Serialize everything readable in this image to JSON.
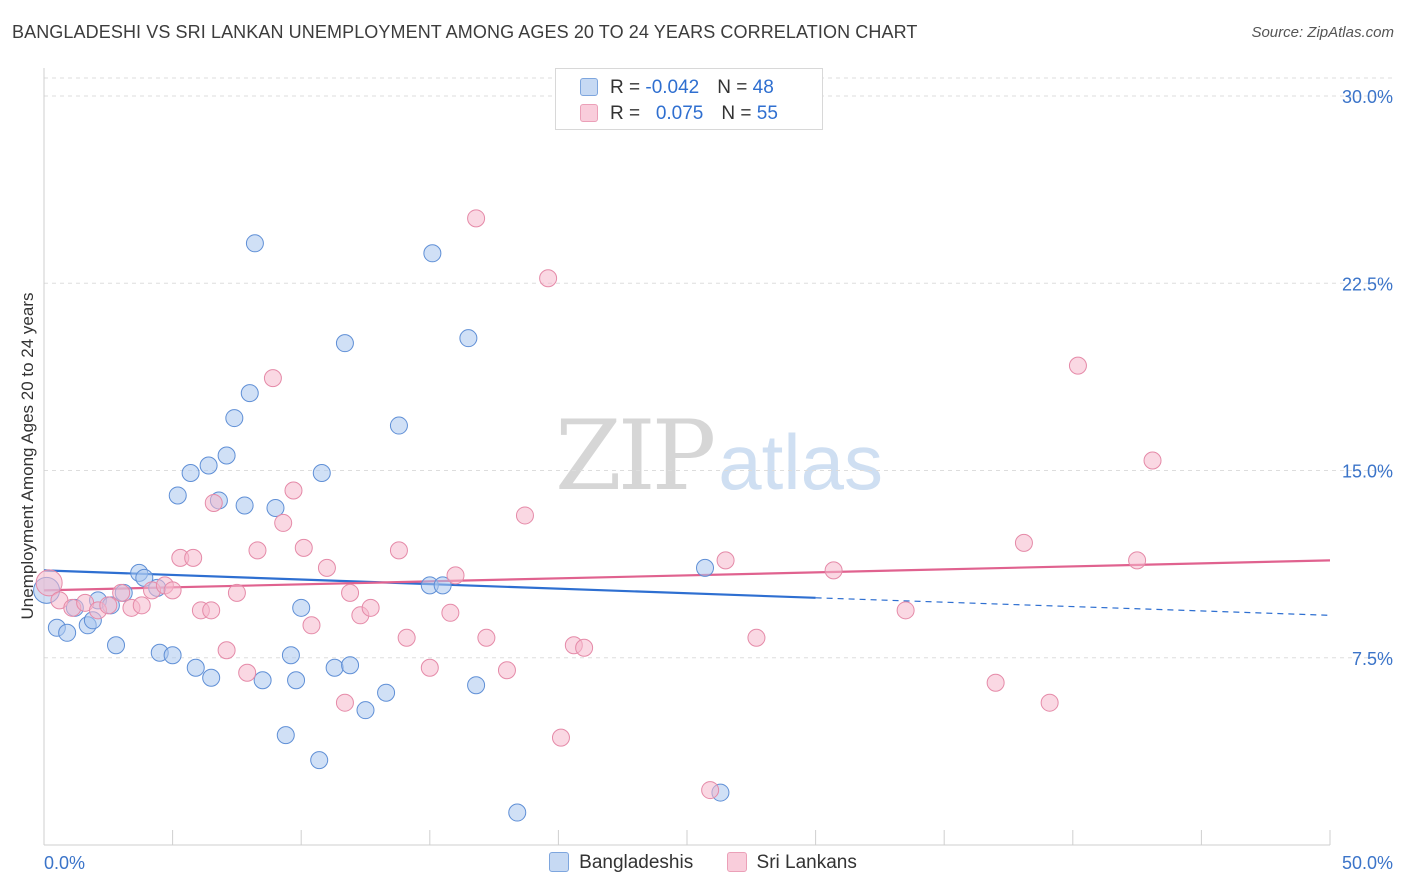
{
  "title": "BANGLADESHI VS SRI LANKAN UNEMPLOYMENT AMONG AGES 20 TO 24 YEARS CORRELATION CHART",
  "source": "Source: ZipAtlas.com",
  "watermark": {
    "zip": "ZIP",
    "atlas": "atlas"
  },
  "legend": {
    "rows": [
      {
        "r_label": "R = ",
        "r_value": "-0.042",
        "n_label": "N = ",
        "n_value": "48"
      },
      {
        "r_label": "R = ",
        "r_value": "0.075",
        "n_label": "N = ",
        "n_value": "55"
      }
    ]
  },
  "colors": {
    "blue_fill": "#a9c6ee",
    "blue_stroke": "#5f8fd6",
    "blue_line": "#2e6fd1",
    "pink_fill": "#f6b8cc",
    "pink_stroke": "#e58aa8",
    "pink_line": "#e0628f",
    "tick_label": "#3b74c9",
    "grid": "#dddddd"
  },
  "chart_data": {
    "type": "scatter",
    "title": "BANGLADESHI VS SRI LANKAN UNEMPLOYMENT AMONG AGES 20 TO 24 YEARS CORRELATION CHART",
    "xlabel": "",
    "ylabel": "Unemployment Among Ages 20 to 24 years",
    "xlim": [
      0,
      50
    ],
    "ylim": [
      0,
      31
    ],
    "x_tick_labels": [
      {
        "value": 0,
        "label": "0.0%"
      },
      {
        "value": 50,
        "label": "50.0%"
      }
    ],
    "y_tick_labels": [
      {
        "value": 7.5,
        "label": "7.5%"
      },
      {
        "value": 15,
        "label": "15.0%"
      },
      {
        "value": 22.5,
        "label": "22.5%"
      },
      {
        "value": 30,
        "label": "30.0%"
      }
    ],
    "grid": true,
    "legend_position": "bottom-center",
    "series": [
      {
        "name": "Bangladeshis",
        "r": -0.042,
        "n": 48,
        "trend": {
          "solid": [
            [
              0,
              11.0
            ],
            [
              30,
              9.9
            ]
          ],
          "dashed": [
            [
              30,
              9.9
            ],
            [
              50,
              9.2
            ]
          ]
        },
        "points": [
          [
            0.1,
            10.2
          ],
          [
            0.5,
            8.7
          ],
          [
            0.9,
            8.5
          ],
          [
            1.2,
            9.5
          ],
          [
            1.7,
            8.8
          ],
          [
            1.9,
            9.0
          ],
          [
            2.1,
            9.8
          ],
          [
            2.6,
            9.6
          ],
          [
            2.8,
            8.0
          ],
          [
            3.1,
            10.1
          ],
          [
            3.7,
            10.9
          ],
          [
            3.9,
            10.7
          ],
          [
            4.4,
            10.3
          ],
          [
            4.5,
            7.7
          ],
          [
            5.0,
            7.6
          ],
          [
            5.2,
            14.0
          ],
          [
            5.7,
            14.9
          ],
          [
            5.9,
            7.1
          ],
          [
            6.4,
            15.2
          ],
          [
            6.5,
            6.7
          ],
          [
            6.8,
            13.8
          ],
          [
            7.1,
            15.6
          ],
          [
            7.4,
            17.1
          ],
          [
            7.8,
            13.6
          ],
          [
            8.0,
            18.1
          ],
          [
            8.2,
            24.1
          ],
          [
            8.5,
            6.6
          ],
          [
            9.0,
            13.5
          ],
          [
            9.4,
            4.4
          ],
          [
            9.6,
            7.6
          ],
          [
            9.8,
            6.6
          ],
          [
            10.0,
            9.5
          ],
          [
            10.8,
            14.9
          ],
          [
            10.7,
            3.4
          ],
          [
            11.3,
            7.1
          ],
          [
            11.7,
            20.1
          ],
          [
            11.9,
            7.2
          ],
          [
            12.5,
            5.4
          ],
          [
            13.3,
            6.1
          ],
          [
            13.8,
            16.8
          ],
          [
            15.0,
            10.4
          ],
          [
            15.1,
            23.7
          ],
          [
            15.5,
            10.4
          ],
          [
            16.5,
            20.3
          ],
          [
            16.8,
            6.4
          ],
          [
            18.4,
            1.3
          ],
          [
            25.7,
            11.1
          ],
          [
            26.3,
            2.1
          ]
        ]
      },
      {
        "name": "Sri Lankans",
        "r": 0.075,
        "n": 55,
        "trend": {
          "solid": [
            [
              0,
              10.2
            ],
            [
              50,
              11.4
            ]
          ]
        },
        "points": [
          [
            0.2,
            10.5
          ],
          [
            0.6,
            9.8
          ],
          [
            1.1,
            9.5
          ],
          [
            1.6,
            9.7
          ],
          [
            2.1,
            9.4
          ],
          [
            2.5,
            9.6
          ],
          [
            3.0,
            10.1
          ],
          [
            3.4,
            9.5
          ],
          [
            3.8,
            9.6
          ],
          [
            4.2,
            10.2
          ],
          [
            4.7,
            10.4
          ],
          [
            5.0,
            10.2
          ],
          [
            5.3,
            11.5
          ],
          [
            5.8,
            11.5
          ],
          [
            6.1,
            9.4
          ],
          [
            6.5,
            9.4
          ],
          [
            6.6,
            13.7
          ],
          [
            7.1,
            7.8
          ],
          [
            7.5,
            10.1
          ],
          [
            7.9,
            6.9
          ],
          [
            8.3,
            11.8
          ],
          [
            8.9,
            18.7
          ],
          [
            9.3,
            12.9
          ],
          [
            9.7,
            14.2
          ],
          [
            10.1,
            11.9
          ],
          [
            10.4,
            8.8
          ],
          [
            11.0,
            11.1
          ],
          [
            11.7,
            5.7
          ],
          [
            11.9,
            10.1
          ],
          [
            12.3,
            9.2
          ],
          [
            12.7,
            9.5
          ],
          [
            13.8,
            11.8
          ],
          [
            14.1,
            8.3
          ],
          [
            15.0,
            7.1
          ],
          [
            15.8,
            9.3
          ],
          [
            16.0,
            10.8
          ],
          [
            16.8,
            25.1
          ],
          [
            17.2,
            8.3
          ],
          [
            18.0,
            7.0
          ],
          [
            18.7,
            13.2
          ],
          [
            19.6,
            22.7
          ],
          [
            20.1,
            4.3
          ],
          [
            20.6,
            8.0
          ],
          [
            21.0,
            7.9
          ],
          [
            25.9,
            2.2
          ],
          [
            26.5,
            11.4
          ],
          [
            27.7,
            8.3
          ],
          [
            30.7,
            11.0
          ],
          [
            33.5,
            9.4
          ],
          [
            37.0,
            6.5
          ],
          [
            38.1,
            12.1
          ],
          [
            39.1,
            5.7
          ],
          [
            40.2,
            19.2
          ],
          [
            42.5,
            11.4
          ],
          [
            43.1,
            15.4
          ]
        ]
      }
    ]
  },
  "bottom_legend": [
    "Bangladeshis",
    "Sri Lankans"
  ]
}
